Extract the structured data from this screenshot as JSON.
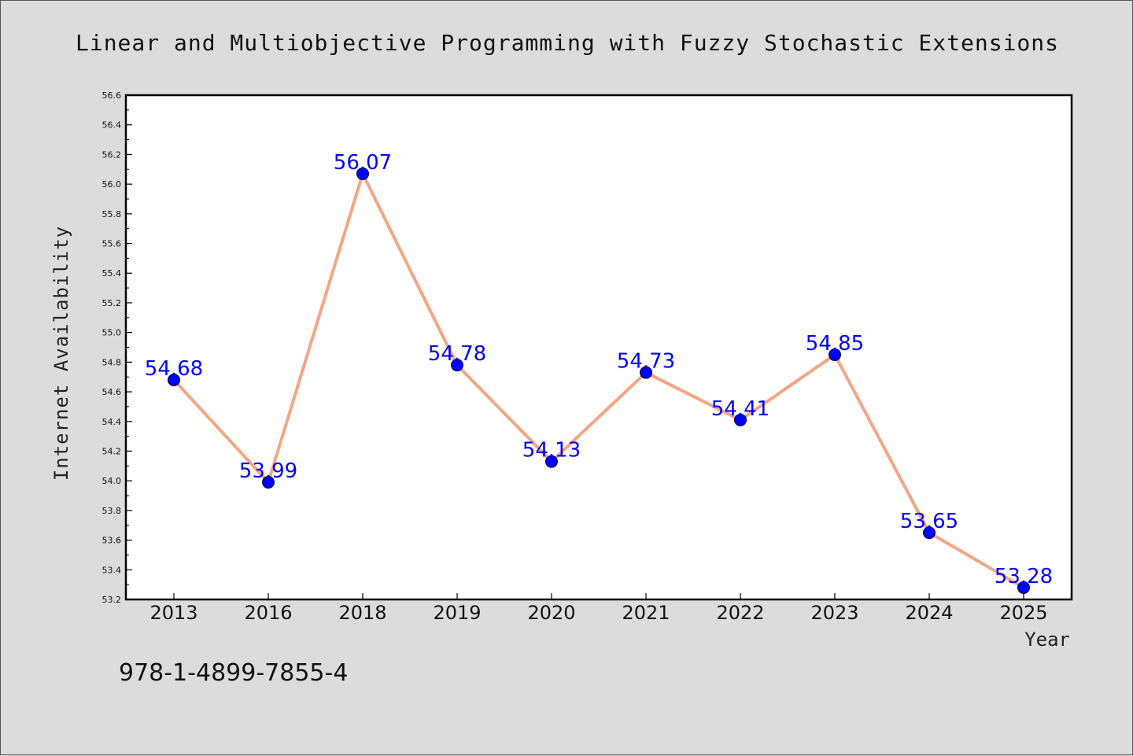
{
  "chart_data": {
    "type": "line",
    "title": "Linear and Multiobjective Programming with Fuzzy Stochastic Extensions",
    "xlabel": "Year",
    "ylabel": "Internet Availability",
    "categories": [
      "2013",
      "2016",
      "2018",
      "2019",
      "2020",
      "2021",
      "2022",
      "2023",
      "2024",
      "2025"
    ],
    "series": [
      {
        "values": [
          54.68,
          53.99,
          56.07,
          54.78,
          54.13,
          54.73,
          54.41,
          54.85,
          53.65,
          53.28
        ],
        "labels": [
          "54.68",
          "53.99",
          "56.07",
          "54.78",
          "54.13",
          "54.73",
          "54.41",
          "54.85",
          "53.65",
          "53.28"
        ],
        "line_color": "#f4a582",
        "marker_color": "#0000ff"
      }
    ],
    "ylim": [
      53.2,
      56.6
    ],
    "yticks": [
      "53.2",
      "53.4",
      "53.6",
      "53.8",
      "54.0",
      "54.2",
      "54.4",
      "54.6",
      "54.8",
      "55.0",
      "55.2",
      "55.4",
      "55.6",
      "55.8",
      "56.0",
      "56.2",
      "56.4",
      "56.6"
    ],
    "grid": false,
    "legend": "none",
    "label_color": "#0000ff"
  },
  "annotation": "978-1-4899-7855-4"
}
